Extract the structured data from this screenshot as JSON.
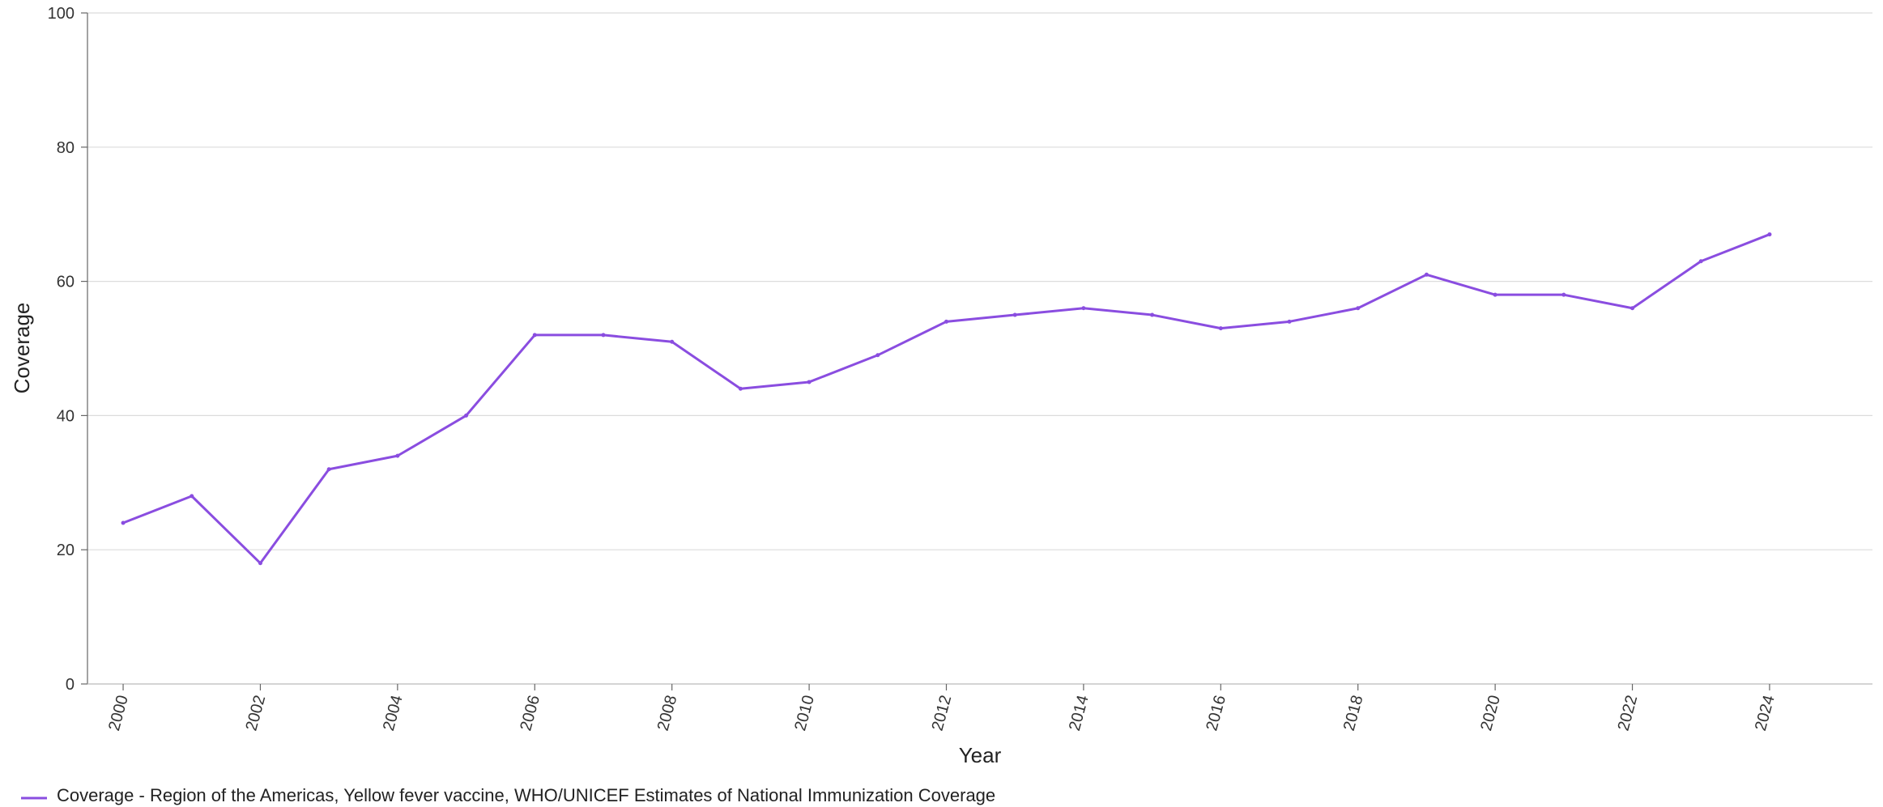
{
  "chart_data": {
    "type": "line",
    "xlabel": "Year",
    "ylabel": "Coverage",
    "xlim": [
      1999.48,
      2025.5
    ],
    "ylim": [
      0,
      100
    ],
    "x_ticks": [
      "2000",
      "2002",
      "2004",
      "2006",
      "2008",
      "2010",
      "2012",
      "2014",
      "2016",
      "2018",
      "2020",
      "2022",
      "2024"
    ],
    "y_ticks": [
      "0",
      "20",
      "40",
      "60",
      "80",
      "100"
    ],
    "grid": true,
    "legend_position": "bottom-left",
    "series": [
      {
        "name": "Coverage - Region of the Americas, Yellow fever vaccine, WHO/UNICEF Estimates of National Immunization Coverage",
        "color": "#8a4de0",
        "x": [
          2000,
          2001,
          2002,
          2003,
          2004,
          2005,
          2006,
          2007,
          2008,
          2009,
          2010,
          2011,
          2012,
          2013,
          2014,
          2015,
          2016,
          2017,
          2018,
          2019,
          2020,
          2021,
          2022,
          2023,
          2024
        ],
        "y": [
          24,
          28,
          18,
          32,
          34,
          40,
          52,
          52,
          51,
          44,
          45,
          49,
          54,
          55,
          56,
          55,
          53,
          54,
          56,
          61,
          58,
          58,
          56,
          63,
          67
        ]
      }
    ]
  }
}
